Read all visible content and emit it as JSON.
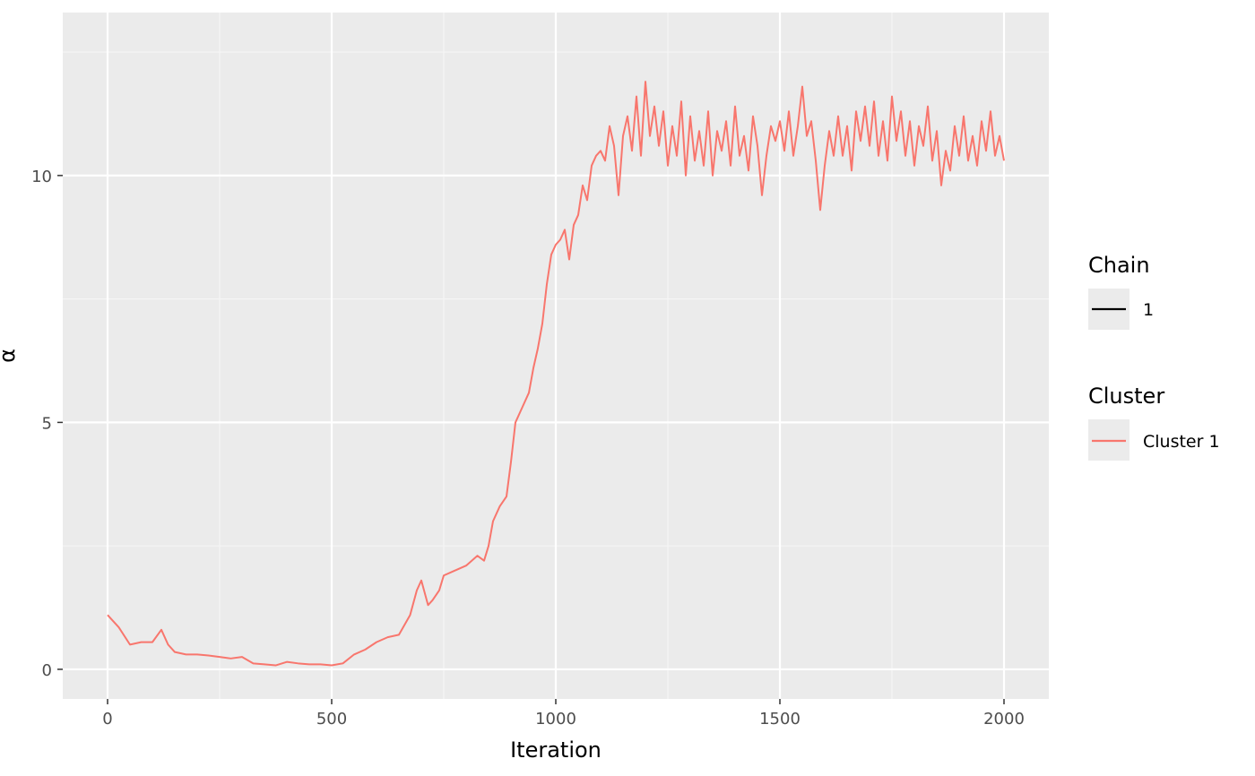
{
  "chart_data": {
    "type": "line",
    "xlabel": "Iteration",
    "ylabel": "α",
    "xlim": [
      -100,
      2100
    ],
    "ylim": [
      -0.6,
      13.3
    ],
    "x_ticks": [
      0,
      500,
      1000,
      1500,
      2000
    ],
    "x_tick_labels": [
      "0",
      "500",
      "1000",
      "1500",
      "2000"
    ],
    "y_ticks": [
      0,
      5,
      10
    ],
    "y_tick_labels": [
      "0",
      "5",
      "10"
    ],
    "grid": true,
    "legend_position": "right",
    "series": [
      {
        "name": "Cluster 1",
        "color": "#F8766D",
        "points": [
          [
            0,
            1.1
          ],
          [
            25,
            0.85
          ],
          [
            50,
            0.5
          ],
          [
            75,
            0.55
          ],
          [
            100,
            0.55
          ],
          [
            120,
            0.8
          ],
          [
            135,
            0.5
          ],
          [
            150,
            0.35
          ],
          [
            175,
            0.3
          ],
          [
            200,
            0.3
          ],
          [
            225,
            0.28
          ],
          [
            250,
            0.25
          ],
          [
            275,
            0.22
          ],
          [
            300,
            0.25
          ],
          [
            325,
            0.12
          ],
          [
            350,
            0.1
          ],
          [
            375,
            0.08
          ],
          [
            400,
            0.15
          ],
          [
            425,
            0.12
          ],
          [
            450,
            0.1
          ],
          [
            475,
            0.1
          ],
          [
            500,
            0.08
          ],
          [
            525,
            0.12
          ],
          [
            550,
            0.3
          ],
          [
            575,
            0.4
          ],
          [
            600,
            0.55
          ],
          [
            625,
            0.65
          ],
          [
            650,
            0.7
          ],
          [
            675,
            1.1
          ],
          [
            690,
            1.6
          ],
          [
            700,
            1.8
          ],
          [
            715,
            1.3
          ],
          [
            725,
            1.4
          ],
          [
            740,
            1.6
          ],
          [
            750,
            1.9
          ],
          [
            775,
            2.0
          ],
          [
            800,
            2.1
          ],
          [
            825,
            2.3
          ],
          [
            840,
            2.2
          ],
          [
            850,
            2.5
          ],
          [
            860,
            3.0
          ],
          [
            875,
            3.3
          ],
          [
            890,
            3.5
          ],
          [
            900,
            4.2
          ],
          [
            910,
            5.0
          ],
          [
            925,
            5.3
          ],
          [
            940,
            5.6
          ],
          [
            950,
            6.1
          ],
          [
            960,
            6.5
          ],
          [
            970,
            7.0
          ],
          [
            980,
            7.8
          ],
          [
            990,
            8.4
          ],
          [
            1000,
            8.6
          ],
          [
            1010,
            8.7
          ],
          [
            1020,
            8.9
          ],
          [
            1030,
            8.3
          ],
          [
            1040,
            9.0
          ],
          [
            1050,
            9.2
          ],
          [
            1060,
            9.8
          ],
          [
            1070,
            9.5
          ],
          [
            1080,
            10.2
          ],
          [
            1090,
            10.4
          ],
          [
            1100,
            10.5
          ],
          [
            1110,
            10.3
          ],
          [
            1120,
            11.0
          ],
          [
            1130,
            10.6
          ],
          [
            1140,
            9.6
          ],
          [
            1150,
            10.8
          ],
          [
            1160,
            11.2
          ],
          [
            1170,
            10.5
          ],
          [
            1180,
            11.6
          ],
          [
            1190,
            10.4
          ],
          [
            1200,
            11.9
          ],
          [
            1210,
            10.8
          ],
          [
            1220,
            11.4
          ],
          [
            1230,
            10.6
          ],
          [
            1240,
            11.3
          ],
          [
            1250,
            10.2
          ],
          [
            1260,
            11.0
          ],
          [
            1270,
            10.4
          ],
          [
            1280,
            11.5
          ],
          [
            1290,
            10.0
          ],
          [
            1300,
            11.2
          ],
          [
            1310,
            10.3
          ],
          [
            1320,
            10.9
          ],
          [
            1330,
            10.2
          ],
          [
            1340,
            11.3
          ],
          [
            1350,
            10.0
          ],
          [
            1360,
            10.9
          ],
          [
            1370,
            10.5
          ],
          [
            1380,
            11.1
          ],
          [
            1390,
            10.2
          ],
          [
            1400,
            11.4
          ],
          [
            1410,
            10.4
          ],
          [
            1420,
            10.8
          ],
          [
            1430,
            10.1
          ],
          [
            1440,
            11.2
          ],
          [
            1450,
            10.6
          ],
          [
            1460,
            9.6
          ],
          [
            1470,
            10.4
          ],
          [
            1480,
            11.0
          ],
          [
            1490,
            10.7
          ],
          [
            1500,
            11.1
          ],
          [
            1510,
            10.5
          ],
          [
            1520,
            11.3
          ],
          [
            1530,
            10.4
          ],
          [
            1540,
            11.0
          ],
          [
            1550,
            11.8
          ],
          [
            1560,
            10.8
          ],
          [
            1570,
            11.1
          ],
          [
            1580,
            10.3
          ],
          [
            1590,
            9.3
          ],
          [
            1600,
            10.2
          ],
          [
            1610,
            10.9
          ],
          [
            1620,
            10.4
          ],
          [
            1630,
            11.2
          ],
          [
            1640,
            10.4
          ],
          [
            1650,
            11.0
          ],
          [
            1660,
            10.1
          ],
          [
            1670,
            11.3
          ],
          [
            1680,
            10.7
          ],
          [
            1690,
            11.4
          ],
          [
            1700,
            10.6
          ],
          [
            1710,
            11.5
          ],
          [
            1720,
            10.4
          ],
          [
            1730,
            11.1
          ],
          [
            1740,
            10.3
          ],
          [
            1750,
            11.6
          ],
          [
            1760,
            10.7
          ],
          [
            1770,
            11.3
          ],
          [
            1780,
            10.4
          ],
          [
            1790,
            11.1
          ],
          [
            1800,
            10.2
          ],
          [
            1810,
            11.0
          ],
          [
            1820,
            10.6
          ],
          [
            1830,
            11.4
          ],
          [
            1840,
            10.3
          ],
          [
            1850,
            10.9
          ],
          [
            1860,
            9.8
          ],
          [
            1870,
            10.5
          ],
          [
            1880,
            10.1
          ],
          [
            1890,
            11.0
          ],
          [
            1900,
            10.4
          ],
          [
            1910,
            11.2
          ],
          [
            1920,
            10.3
          ],
          [
            1930,
            10.8
          ],
          [
            1940,
            10.2
          ],
          [
            1950,
            11.1
          ],
          [
            1960,
            10.5
          ],
          [
            1970,
            11.3
          ],
          [
            1980,
            10.4
          ],
          [
            1990,
            10.8
          ],
          [
            2000,
            10.3
          ]
        ]
      }
    ],
    "legend": {
      "chain": {
        "title": "Chain",
        "entries": [
          {
            "label": "1",
            "color": "#000000"
          }
        ]
      },
      "cluster": {
        "title": "Cluster",
        "entries": [
          {
            "label": "Cluster 1",
            "color": "#F8766D"
          }
        ]
      }
    },
    "style": {
      "panel_bg": "#EBEBEB",
      "grid_major": "#FFFFFF",
      "grid_minor": "#F5F5F5",
      "tick_color": "#333333",
      "text_muted": "#4d4d4d"
    }
  }
}
